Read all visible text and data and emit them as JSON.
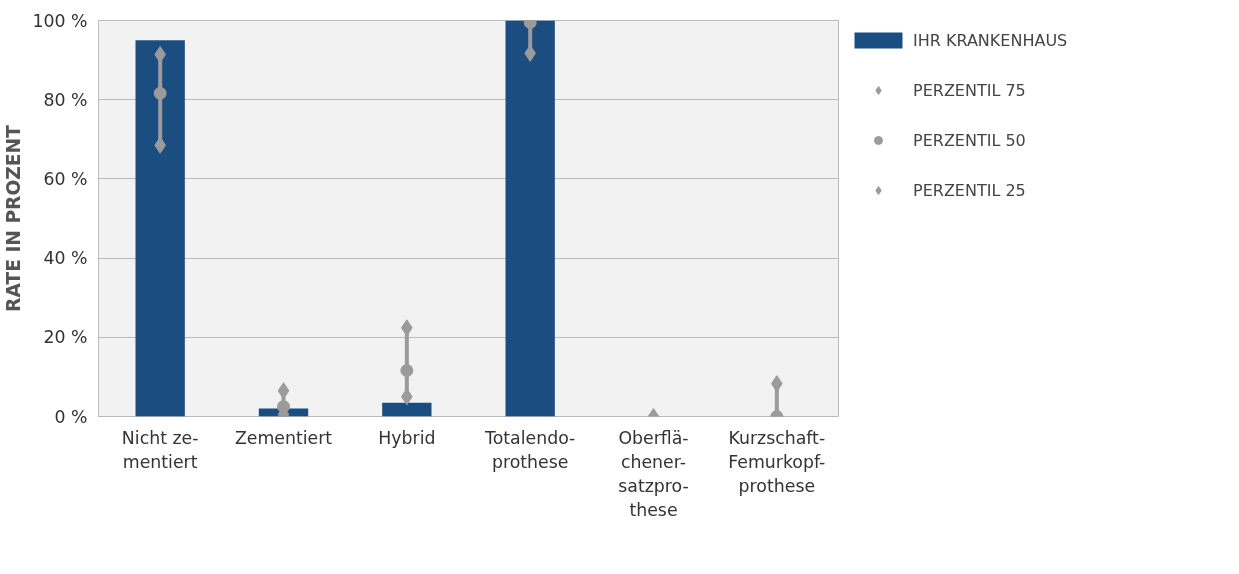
{
  "chart_data": {
    "type": "bar",
    "ylabel": "RATE IN PROZENT",
    "categories": [
      "Nicht ze-\nmentiert",
      "Zementiert",
      "Hybrid",
      "Totalendo-\nprothese",
      "Oberflä-\nchener-\nsatzpro-\nthese",
      "Kurzschaft-\nFemurkopf-\nprothese"
    ],
    "series": [
      {
        "name": "IHR KRANKENHAUS",
        "color": "#1b4e80",
        "values": [
          95,
          2,
          3.5,
          100,
          0,
          0
        ]
      },
      {
        "name": "PERZENTIL 75",
        "type": "scatter",
        "marker": "diamond",
        "color": "#9b9b9b",
        "values": [
          91.4,
          6.5,
          22.4,
          null,
          null,
          8.3
        ]
      },
      {
        "name": "PERZENTIL 50",
        "type": "scatter",
        "marker": "circle",
        "color": "#9b9b9b",
        "values": [
          81.6,
          2.5,
          11.6,
          99.5,
          null,
          0
        ]
      },
      {
        "name": "PERZENTIL 25",
        "type": "scatter",
        "marker": "diamond",
        "color": "#9b9b9b",
        "values": [
          68.5,
          0.5,
          5,
          91.7,
          0,
          0
        ]
      }
    ],
    "ylim": [
      0,
      100
    ],
    "yticks": [
      {
        "value": 0,
        "label": "0 %"
      },
      {
        "value": 20,
        "label": "20 %"
      },
      {
        "value": 40,
        "label": "40 %"
      },
      {
        "value": 60,
        "label": "60 %"
      },
      {
        "value": 80,
        "label": "80 %"
      },
      {
        "value": 100,
        "label": "100 %"
      }
    ],
    "grid": "y",
    "legend": "right"
  }
}
